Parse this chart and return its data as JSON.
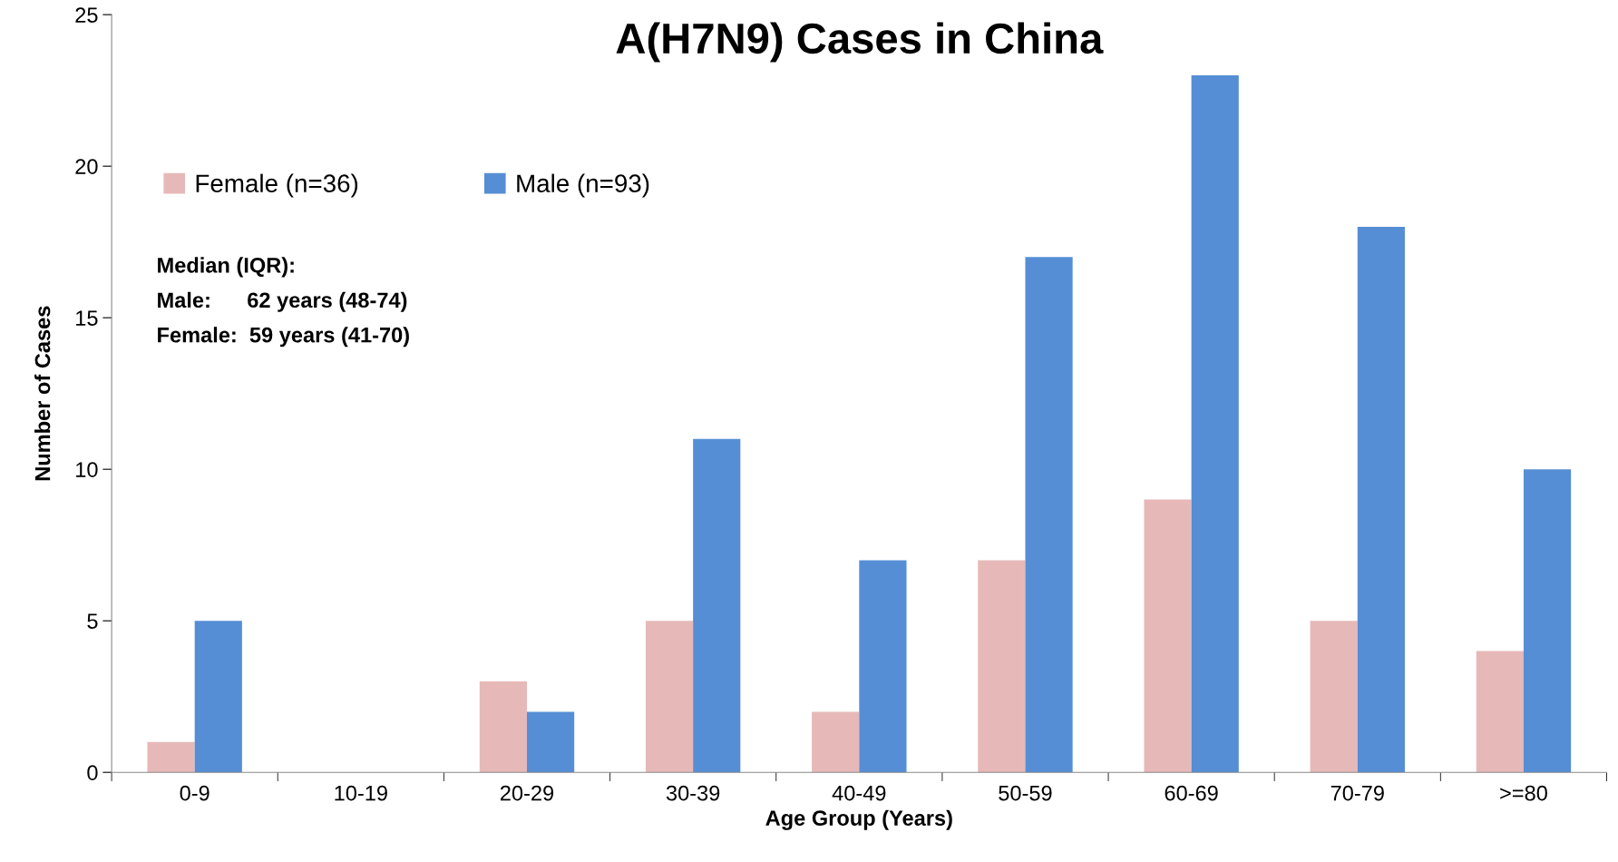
{
  "chart_data": {
    "type": "bar",
    "title": "A(H7N9) Cases in China",
    "xlabel": "Age Group (Years)",
    "ylabel": "Number of Cases",
    "categories": [
      "0-9",
      "10-19",
      "20-29",
      "30-39",
      "40-49",
      "50-59",
      "60-69",
      "70-79",
      ">=80"
    ],
    "series": [
      {
        "name": "Female (n=36)",
        "color": "#e6b9b8",
        "values": [
          1,
          0,
          3,
          5,
          2,
          7,
          9,
          5,
          4
        ]
      },
      {
        "name": "Male (n=93)",
        "color": "#558ed5",
        "values": [
          5,
          0,
          2,
          11,
          7,
          17,
          23,
          18,
          10
        ]
      }
    ],
    "annotations": [
      "Median (IQR):",
      "Male:      62 years (48-74)",
      "Female:  59 years (41-70)"
    ],
    "ylim": [
      0,
      25
    ],
    "yticks": [
      0,
      5,
      10,
      15,
      20,
      25
    ],
    "grid": false,
    "legend": "top left"
  }
}
